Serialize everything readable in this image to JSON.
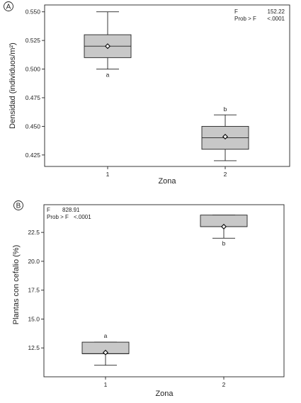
{
  "chart_data": [
    {
      "panel": "A",
      "type": "box",
      "xlabel": "Zona",
      "ylabel": "Densidad (individuos/m²)",
      "ylim": [
        0.415,
        0.556
      ],
      "yticks": [
        "0.425",
        "0.450",
        "0.475",
        "0.500",
        "0.525",
        "0.550"
      ],
      "categories": [
        "1",
        "2"
      ],
      "boxes": [
        {
          "category": "1",
          "whisker_low": 0.5,
          "q1": 0.51,
          "median": 0.52,
          "q3": 0.53,
          "whisker_high": 0.55,
          "mean": 0.52,
          "group_letter": "a"
        },
        {
          "category": "2",
          "whisker_low": 0.42,
          "q1": 0.43,
          "median": 0.44,
          "q3": 0.45,
          "whisker_high": 0.46,
          "mean": 0.441,
          "group_letter": "b"
        }
      ],
      "stats": {
        "f_label": "F",
        "f_value": "152.22",
        "p_label": "Prob > F",
        "p_value": "<.0001"
      }
    },
    {
      "panel": "B",
      "type": "box",
      "xlabel": "Zona",
      "ylabel": "Plantas con cefalio (%)",
      "ylim": [
        10.0,
        24.9
      ],
      "yticks": [
        "12.5",
        "15.0",
        "17.5",
        "20.0",
        "22.5"
      ],
      "categories": [
        "1",
        "2"
      ],
      "boxes": [
        {
          "category": "1",
          "whisker_low": 11.0,
          "q1": 12.0,
          "median": 12.0,
          "q3": 13.0,
          "whisker_high": 13.0,
          "mean": 12.1,
          "group_letter": "a"
        },
        {
          "category": "2",
          "whisker_low": 22.0,
          "q1": 23.0,
          "median": 23.0,
          "q3": 24.0,
          "whisker_high": 24.0,
          "mean": 23.0,
          "group_letter": "b"
        }
      ],
      "stats": {
        "f_label": "F",
        "f_value": "828.91",
        "p_label": "Prob > F",
        "p_value": "<.0001"
      }
    }
  ]
}
